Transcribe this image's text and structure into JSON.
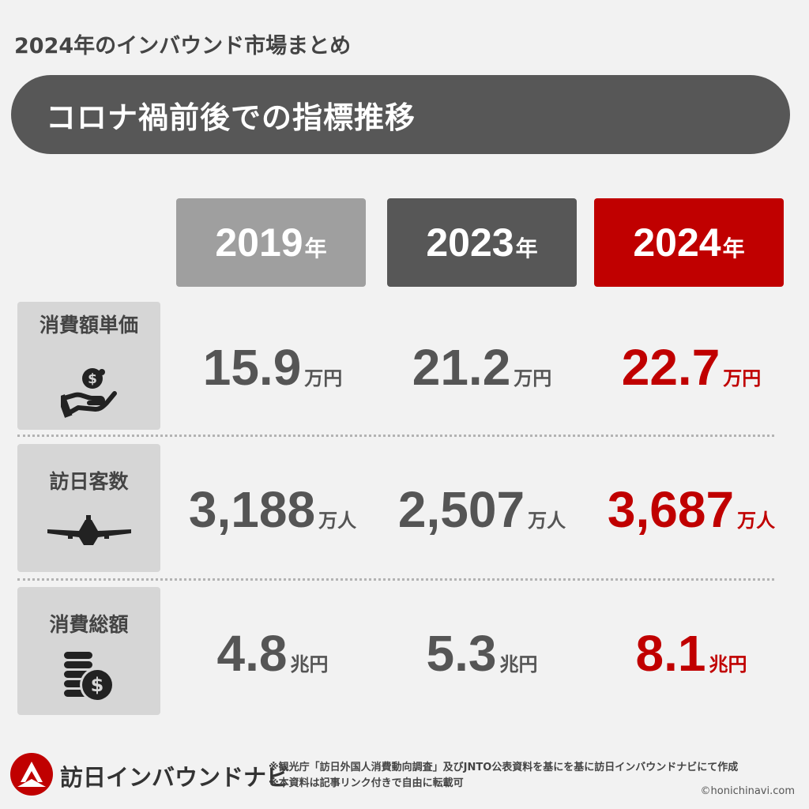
{
  "header": {
    "title": "2024年のインバウンド市場まとめ",
    "banner": "コロナ禍前後での指標推移"
  },
  "years": [
    {
      "num": "2019",
      "suffix": "年",
      "color": "#9f9f9f"
    },
    {
      "num": "2023",
      "suffix": "年",
      "color": "#575757"
    },
    {
      "num": "2024",
      "suffix": "年",
      "color": "#c00000"
    }
  ],
  "rows": [
    {
      "label": "消費額単価",
      "icon": "hand-coin-icon",
      "values": [
        {
          "num": "15.9",
          "unit": "万円"
        },
        {
          "num": "21.2",
          "unit": "万円"
        },
        {
          "num": "22.7",
          "unit": "万円"
        }
      ]
    },
    {
      "label": "訪日客数",
      "icon": "airplane-icon",
      "values": [
        {
          "num": "3,188",
          "unit": "万人"
        },
        {
          "num": "2,507",
          "unit": "万人"
        },
        {
          "num": "3,687",
          "unit": "万人"
        }
      ]
    },
    {
      "label": "消費総額",
      "icon": "coin-stack-icon",
      "values": [
        {
          "num": "4.8",
          "unit": "兆円"
        },
        {
          "num": "5.3",
          "unit": "兆円"
        },
        {
          "num": "8.1",
          "unit": "兆円"
        }
      ]
    }
  ],
  "footer": {
    "brand": "訪日インバウンドナビ",
    "note_line1": "※観光庁「訪日外国人消費動向調査」及びJNTO公表資料を基にを基に訪日インバウンドナビにて作成",
    "note_line2": "※本資料は記事リンク付きで自由に転載可",
    "copyright": "©honichinavi.com"
  },
  "colors": {
    "accent": "#c00000",
    "dark": "#575757",
    "light": "#9f9f9f"
  }
}
